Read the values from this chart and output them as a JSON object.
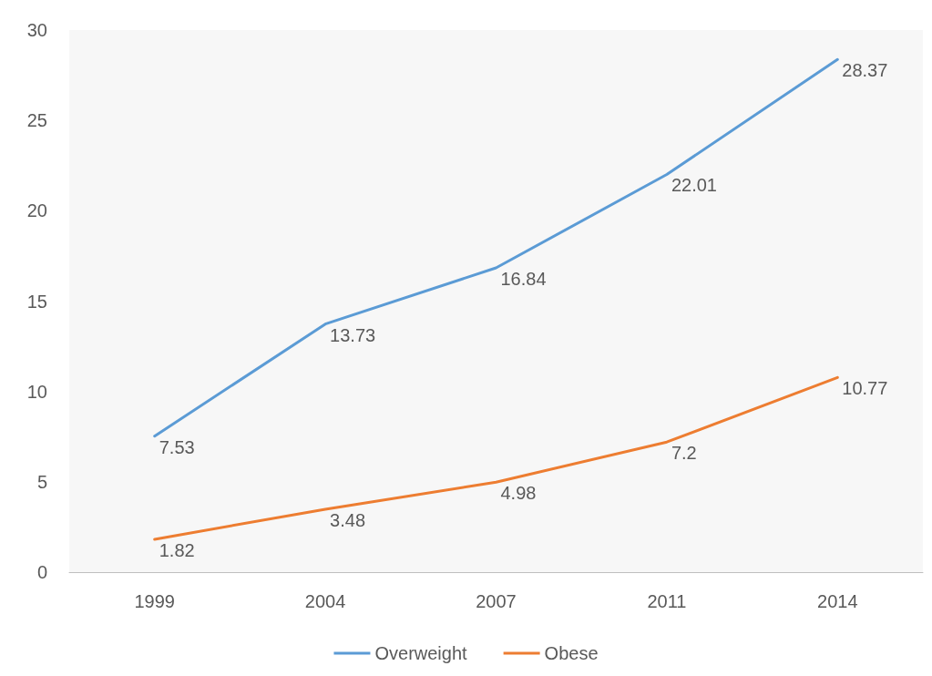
{
  "chart_data": {
    "type": "line",
    "categories": [
      "1999",
      "2004",
      "2007",
      "2011",
      "2014"
    ],
    "series": [
      {
        "name": "Overweight",
        "color": "#5b9bd5",
        "values": [
          7.53,
          13.73,
          16.84,
          22.01,
          28.37
        ]
      },
      {
        "name": "Obese",
        "color": "#ed7d31",
        "values": [
          1.82,
          3.48,
          4.98,
          7.2,
          10.77
        ]
      }
    ],
    "ylim": [
      0,
      30
    ],
    "yticks": [
      0,
      5,
      10,
      15,
      20,
      25,
      30
    ],
    "grid": false,
    "legend": "bottom",
    "data_labels": true,
    "marker": "none",
    "line_style": "solid"
  }
}
